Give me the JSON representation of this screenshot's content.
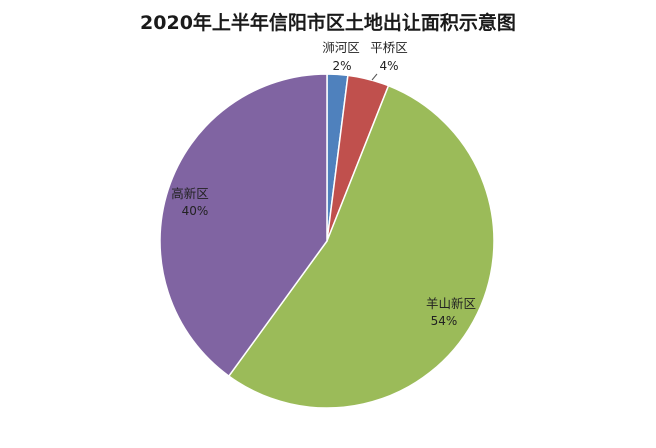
{
  "chart_data": {
    "type": "pie",
    "title": "2020年上半年信阳市区土地出让面积示意图",
    "slices": [
      {
        "name": "浉河区",
        "value": 2,
        "label": "2%",
        "color": "#4f81bd"
      },
      {
        "name": "平桥区",
        "value": 4,
        "label": "4%",
        "color": "#c0504d"
      },
      {
        "name": "羊山新区",
        "value": 54,
        "label": "54%",
        "color": "#9bbb59"
      },
      {
        "name": "高新区",
        "value": 40,
        "label": "40%",
        "color": "#8064a2"
      }
    ],
    "start_angle": "12 o'clock",
    "direction": "clockwise",
    "legend": "none",
    "data_labels": "category name and percentage"
  }
}
